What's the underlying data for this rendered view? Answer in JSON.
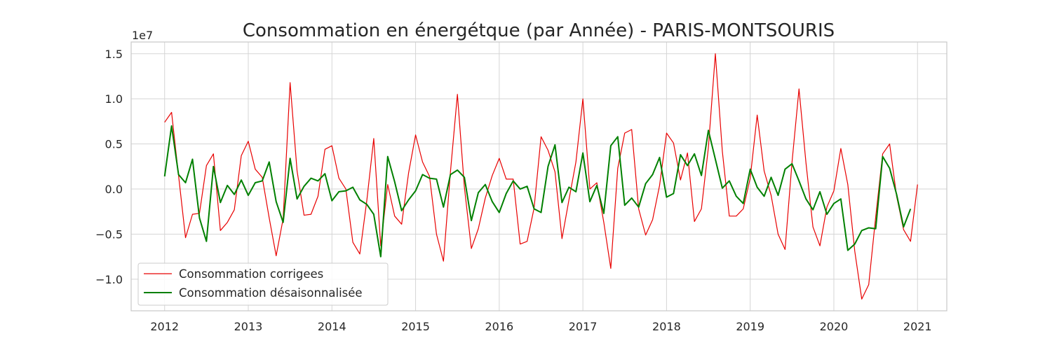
{
  "chart_data": {
    "type": "line",
    "title": "Consommation en énergétque (par Année) - PARIS-MONTSOURIS",
    "xlabel": "",
    "ylabel": "",
    "y_offset_label": "1e7",
    "x_start": "2012-01",
    "x_step": "month",
    "xlim": [
      2011.6,
      2021.35
    ],
    "ylim": [
      -1.35,
      1.63
    ],
    "x_ticks": [
      2012,
      2013,
      2014,
      2015,
      2016,
      2017,
      2018,
      2019,
      2020,
      2021
    ],
    "x_tick_labels": [
      "2012",
      "2013",
      "2014",
      "2015",
      "2016",
      "2017",
      "2018",
      "2019",
      "2020",
      "2021"
    ],
    "y_ticks": [
      -1.0,
      -0.5,
      0.0,
      0.5,
      1.0,
      1.5
    ],
    "y_tick_labels": [
      "−1.0",
      "−0.5",
      "0.0",
      "0.5",
      "1.0",
      "1.5"
    ],
    "grid": true,
    "legend_position": "lower-left",
    "series": [
      {
        "name": "Consommation corrigees",
        "color": "#e80000",
        "values": [
          0.74,
          0.85,
          0.15,
          -0.54,
          -0.28,
          -0.27,
          0.26,
          0.39,
          -0.46,
          -0.37,
          -0.23,
          0.37,
          0.53,
          0.22,
          0.13,
          -0.32,
          -0.74,
          -0.33,
          1.18,
          0.2,
          -0.29,
          -0.28,
          -0.08,
          0.44,
          0.48,
          0.12,
          0.0,
          -0.59,
          -0.72,
          -0.13,
          0.56,
          -0.63,
          0.05,
          -0.3,
          -0.39,
          0.18,
          0.6,
          0.3,
          0.14,
          -0.5,
          -0.8,
          0.19,
          1.05,
          0.02,
          -0.66,
          -0.44,
          -0.1,
          0.15,
          0.34,
          0.11,
          0.11,
          -0.61,
          -0.58,
          -0.21,
          0.58,
          0.43,
          0.19,
          -0.55,
          -0.12,
          0.3,
          1.0,
          0.0,
          0.07,
          -0.37,
          -0.88,
          0.23,
          0.62,
          0.66,
          -0.22,
          -0.51,
          -0.34,
          0.04,
          0.62,
          0.51,
          0.1,
          0.4,
          -0.36,
          -0.22,
          0.46,
          1.5,
          0.42,
          -0.3,
          -0.3,
          -0.22,
          0.12,
          0.82,
          0.2,
          -0.07,
          -0.5,
          -0.67,
          0.3,
          1.11,
          0.29,
          -0.42,
          -0.63,
          -0.2,
          -0.02,
          0.45,
          0.05,
          -0.69,
          -1.22,
          -1.06,
          -0.31,
          0.39,
          0.5,
          -0.08,
          -0.45,
          -0.58,
          0.05
        ]
      },
      {
        "name": "Consommation désaisonnalisée",
        "color": "#008000",
        "values": [
          0.14,
          0.7,
          0.16,
          0.07,
          0.33,
          -0.32,
          -0.58,
          0.25,
          -0.15,
          0.04,
          -0.06,
          0.1,
          -0.07,
          0.07,
          0.09,
          0.3,
          -0.14,
          -0.37,
          0.34,
          -0.11,
          0.03,
          0.12,
          0.09,
          0.17,
          -0.13,
          -0.03,
          -0.02,
          0.02,
          -0.12,
          -0.17,
          -0.28,
          -0.75,
          0.36,
          0.08,
          -0.24,
          -0.12,
          -0.02,
          0.16,
          0.12,
          0.11,
          -0.2,
          0.16,
          0.21,
          0.13,
          -0.35,
          -0.04,
          0.05,
          -0.14,
          -0.26,
          -0.05,
          0.09,
          0.0,
          0.03,
          -0.22,
          -0.26,
          0.25,
          0.49,
          -0.15,
          0.02,
          -0.03,
          0.4,
          -0.14,
          0.04,
          -0.27,
          0.48,
          0.58,
          -0.18,
          -0.1,
          -0.2,
          0.06,
          0.16,
          0.35,
          -0.09,
          -0.05,
          0.38,
          0.26,
          0.39,
          0.15,
          0.65,
          0.33,
          0.01,
          0.09,
          -0.08,
          -0.16,
          0.22,
          0.02,
          -0.08,
          0.13,
          -0.07,
          0.22,
          0.28,
          0.09,
          -0.11,
          -0.23,
          -0.03,
          -0.28,
          -0.16,
          -0.11,
          -0.68,
          -0.61,
          -0.46,
          -0.43,
          -0.44,
          0.36,
          0.23,
          -0.06,
          -0.42,
          -0.22
        ]
      }
    ]
  }
}
